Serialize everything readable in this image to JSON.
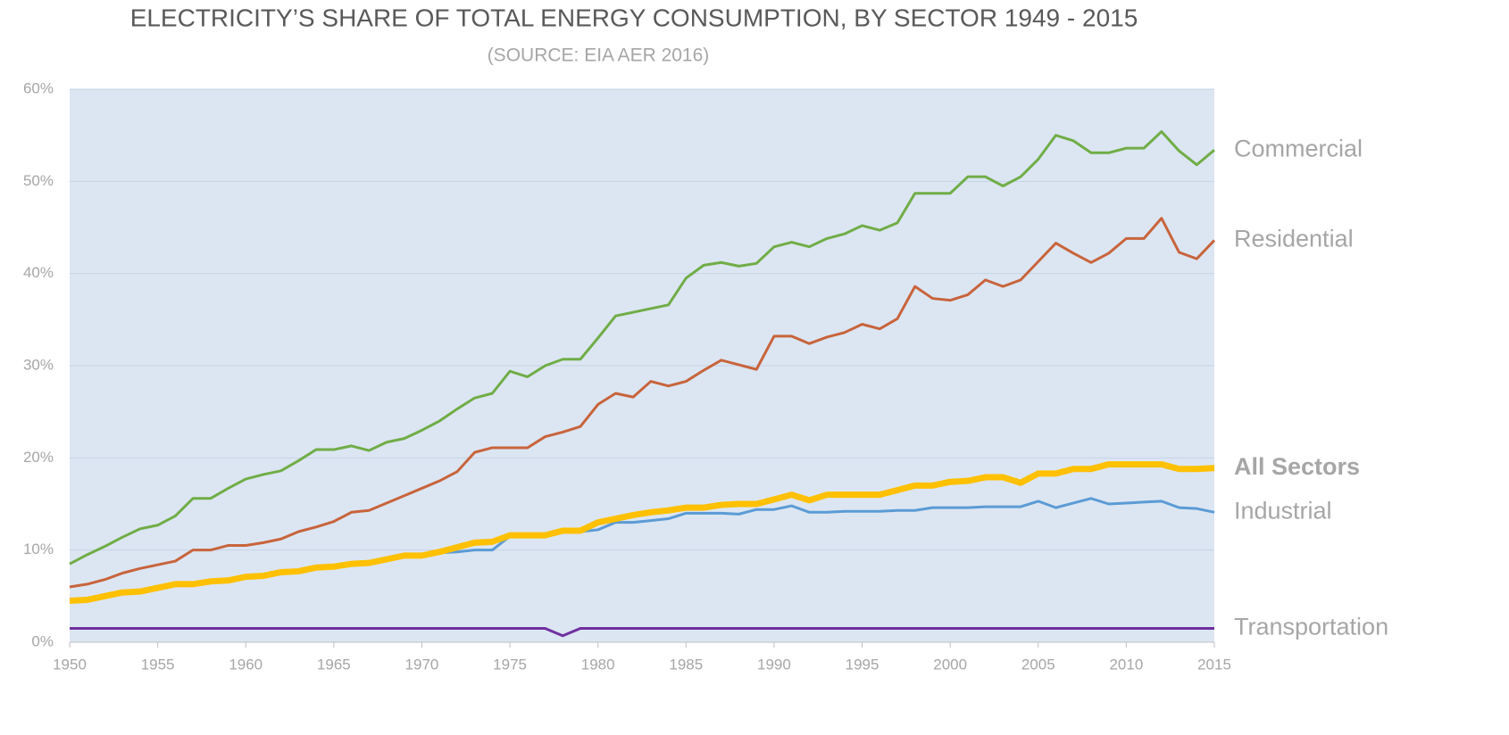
{
  "chart_data": {
    "type": "line",
    "title": "ELECTRICITY’S SHARE OF TOTAL ENERGY CONSUMPTION, BY SECTOR 1949 - 2015",
    "subtitle": "(SOURCE: EIA AER 2016)",
    "x": [
      1950,
      1951,
      1952,
      1953,
      1954,
      1955,
      1956,
      1957,
      1958,
      1959,
      1960,
      1961,
      1962,
      1963,
      1964,
      1965,
      1966,
      1967,
      1968,
      1969,
      1970,
      1971,
      1972,
      1973,
      1974,
      1975,
      1976,
      1977,
      1978,
      1979,
      1980,
      1981,
      1982,
      1983,
      1984,
      1985,
      1986,
      1987,
      1988,
      1989,
      1990,
      1991,
      1992,
      1993,
      1994,
      1995,
      1996,
      1997,
      1998,
      1999,
      2000,
      2001,
      2002,
      2003,
      2004,
      2005,
      2006,
      2007,
      2008,
      2009,
      2010,
      2011,
      2012,
      2013,
      2014,
      2015
    ],
    "xlim": [
      1950,
      2015
    ],
    "xticks": [
      1950,
      1955,
      1960,
      1965,
      1970,
      1975,
      1980,
      1985,
      1990,
      1995,
      2000,
      2005,
      2010,
      2015
    ],
    "ylim": [
      0,
      60
    ],
    "yticks": [
      {
        "value": 0,
        "label": "0%"
      },
      {
        "value": 10,
        "label": "10%"
      },
      {
        "value": 20,
        "label": "20%"
      },
      {
        "value": 30,
        "label": "30%"
      },
      {
        "value": 40,
        "label": "40%"
      },
      {
        "value": 50,
        "label": "50%"
      },
      {
        "value": 60,
        "label": "60%"
      }
    ],
    "grid": true,
    "series": [
      {
        "name": "Commercial",
        "color": "#70ad47",
        "width": 3,
        "values": [
          8.5,
          9.5,
          10.4,
          11.4,
          12.3,
          12.7,
          13.7,
          15.6,
          15.6,
          16.7,
          17.7,
          18.2,
          18.6,
          19.7,
          20.9,
          20.9,
          21.3,
          20.8,
          21.7,
          22.1,
          23.0,
          24.0,
          25.3,
          26.5,
          27.0,
          29.4,
          28.8,
          30.0,
          30.7,
          30.7,
          33.0,
          35.4,
          35.8,
          36.2,
          36.6,
          39.5,
          40.9,
          41.2,
          40.8,
          41.1,
          42.9,
          43.4,
          42.9,
          43.8,
          44.3,
          45.2,
          44.7,
          45.5,
          48.7,
          48.7,
          48.7,
          50.5,
          50.5,
          49.5,
          50.5,
          52.4,
          55.0,
          54.4,
          53.1,
          53.1,
          53.6,
          53.6,
          55.4,
          53.3,
          51.8,
          53.4
        ]
      },
      {
        "name": "Residential",
        "color": "#c8643c",
        "width": 3,
        "values": [
          6.0,
          6.3,
          6.8,
          7.5,
          8.0,
          8.4,
          8.8,
          10.0,
          10.0,
          10.5,
          10.5,
          10.8,
          11.2,
          12.0,
          12.5,
          13.1,
          14.1,
          14.3,
          15.1,
          15.9,
          16.7,
          17.5,
          18.5,
          20.6,
          21.1,
          21.1,
          21.1,
          22.3,
          22.8,
          23.4,
          25.8,
          27.0,
          26.6,
          28.3,
          27.8,
          28.3,
          29.5,
          30.6,
          30.1,
          29.6,
          33.2,
          33.2,
          32.4,
          33.1,
          33.6,
          34.5,
          34.0,
          35.1,
          38.6,
          37.3,
          37.1,
          37.7,
          39.3,
          38.6,
          39.3,
          41.3,
          43.3,
          42.2,
          41.2,
          42.2,
          43.8,
          43.8,
          46.0,
          42.3,
          41.6,
          43.6
        ]
      },
      {
        "name": "All Sectors",
        "color": "#ffc000",
        "width": 7,
        "bold": true,
        "values": [
          4.5,
          4.6,
          5.0,
          5.4,
          5.5,
          5.9,
          6.3,
          6.3,
          6.6,
          6.7,
          7.1,
          7.2,
          7.6,
          7.7,
          8.1,
          8.2,
          8.5,
          8.6,
          9.0,
          9.4,
          9.4,
          9.8,
          10.3,
          10.8,
          10.9,
          11.6,
          11.6,
          11.6,
          12.1,
          12.1,
          13.0,
          13.4,
          13.8,
          14.1,
          14.3,
          14.6,
          14.6,
          14.9,
          15.0,
          15.0,
          15.5,
          16.0,
          15.4,
          16.0,
          16.0,
          16.0,
          16.0,
          16.5,
          17.0,
          17.0,
          17.4,
          17.5,
          17.9,
          17.9,
          17.3,
          18.3,
          18.3,
          18.8,
          18.8,
          19.3,
          19.3,
          19.3,
          19.3,
          18.8,
          18.8,
          18.9
        ]
      },
      {
        "name": "Industrial",
        "color": "#5b9bd5",
        "width": 3,
        "values": [
          4.5,
          4.6,
          5.0,
          5.4,
          5.5,
          5.9,
          6.3,
          6.3,
          6.6,
          6.7,
          7.1,
          7.2,
          7.6,
          7.7,
          8.1,
          8.2,
          8.5,
          8.6,
          9.0,
          9.4,
          9.4,
          9.7,
          9.8,
          10.0,
          10.0,
          11.5,
          11.5,
          11.5,
          12.0,
          12.0,
          12.2,
          13.0,
          13.0,
          13.2,
          13.4,
          14.0,
          14.0,
          14.0,
          13.9,
          14.4,
          14.4,
          14.8,
          14.1,
          14.1,
          14.2,
          14.2,
          14.2,
          14.3,
          14.3,
          14.6,
          14.6,
          14.6,
          14.7,
          14.7,
          14.7,
          15.3,
          14.6,
          15.1,
          15.6,
          15.0,
          15.1,
          15.2,
          15.3,
          14.6,
          14.5,
          14.1
        ]
      },
      {
        "name": "Transportation",
        "color": "#7030a0",
        "width": 3,
        "values": [
          1.5,
          1.5,
          1.5,
          1.5,
          1.5,
          1.5,
          1.5,
          1.5,
          1.5,
          1.5,
          1.5,
          1.5,
          1.5,
          1.5,
          1.5,
          1.5,
          1.5,
          1.5,
          1.5,
          1.5,
          1.5,
          1.5,
          1.5,
          1.5,
          1.5,
          1.5,
          1.5,
          1.5,
          0.7,
          1.5,
          1.5,
          1.5,
          1.5,
          1.5,
          1.5,
          1.5,
          1.5,
          1.5,
          1.5,
          1.5,
          1.5,
          1.5,
          1.5,
          1.5,
          1.5,
          1.5,
          1.5,
          1.5,
          1.5,
          1.5,
          1.5,
          1.5,
          1.5,
          1.5,
          1.5,
          1.5,
          1.5,
          1.5,
          1.5,
          1.5,
          1.5,
          1.5,
          1.5,
          1.5,
          1.5,
          1.5
        ]
      }
    ]
  }
}
